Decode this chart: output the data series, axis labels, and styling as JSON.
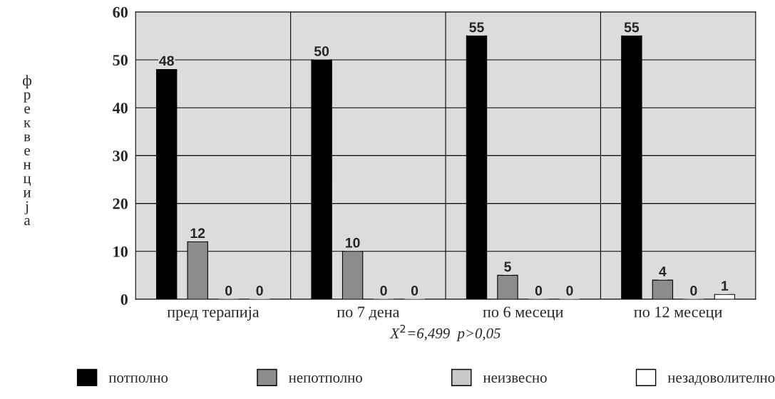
{
  "chart_data": {
    "type": "bar",
    "categories": [
      "пред терапија",
      "по 7 дена",
      "по 6 месеци",
      "по 12 месеци"
    ],
    "series": [
      {
        "name": "потполно",
        "color": "#000000",
        "values": [
          48,
          50,
          55,
          55
        ]
      },
      {
        "name": "непотполно",
        "color": "#8c8c8c",
        "values": [
          12,
          10,
          5,
          4
        ]
      },
      {
        "name": "неизвесно",
        "color": "#c8c8c8",
        "values": [
          0,
          0,
          0,
          0
        ]
      },
      {
        "name": "незадоволително",
        "color": "#ffffff",
        "values": [
          0,
          0,
          0,
          1
        ]
      }
    ],
    "ylabel": "фреквенција",
    "ylim": [
      0,
      60
    ],
    "yticks": [
      0,
      10,
      20,
      30,
      40,
      50,
      60
    ],
    "grid": true,
    "data_labels": true,
    "legend": "bottom",
    "annotations": [
      "X$^{2}$=6,499  p>0,05"
    ]
  }
}
